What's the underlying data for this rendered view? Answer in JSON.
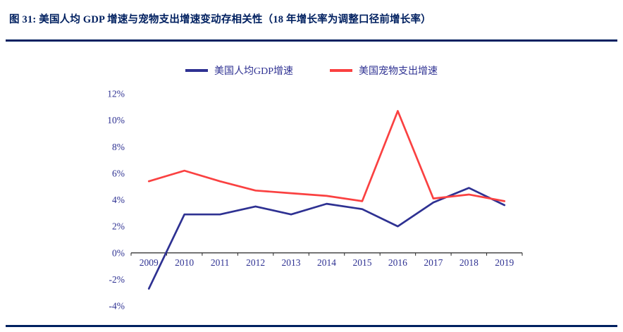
{
  "figure": {
    "title": "图 31: 美国人均 GDP 增速与宠物支出增速变动存相关性（18 年增长率为调整口径前增长率）"
  },
  "colors": {
    "accent_navy": "#002060",
    "axis_text": "#2E3192",
    "axis_line": "#262626",
    "blue_series": "#2E3192",
    "red_series": "#FA4141"
  },
  "chart_data": {
    "type": "line",
    "title": "美国人均GDP增速与宠物支出增速",
    "categories": [
      "2009",
      "2010",
      "2011",
      "2012",
      "2013",
      "2014",
      "2015",
      "2016",
      "2017",
      "2018",
      "2019"
    ],
    "series": [
      {
        "id": "gdp",
        "name": "美国人均GDP增速",
        "color": "#2E3192",
        "values": [
          -2.7,
          2.9,
          2.9,
          3.5,
          2.9,
          3.7,
          3.3,
          2.0,
          3.8,
          4.9,
          3.6
        ]
      },
      {
        "id": "pet",
        "name": "美国宠物支出增速",
        "color": "#FA4141",
        "values": [
          5.4,
          6.2,
          5.4,
          4.7,
          4.5,
          4.3,
          3.9,
          10.7,
          4.1,
          4.4,
          3.9
        ]
      }
    ],
    "ylim": [
      -4,
      12
    ],
    "ytick_step": 2,
    "ytick_labels": [
      "-4%",
      "-2%",
      "0%",
      "2%",
      "4%",
      "6%",
      "8%",
      "10%",
      "12%"
    ],
    "xlabel": "",
    "ylabel": "",
    "grid": false,
    "legend_position": "top"
  }
}
